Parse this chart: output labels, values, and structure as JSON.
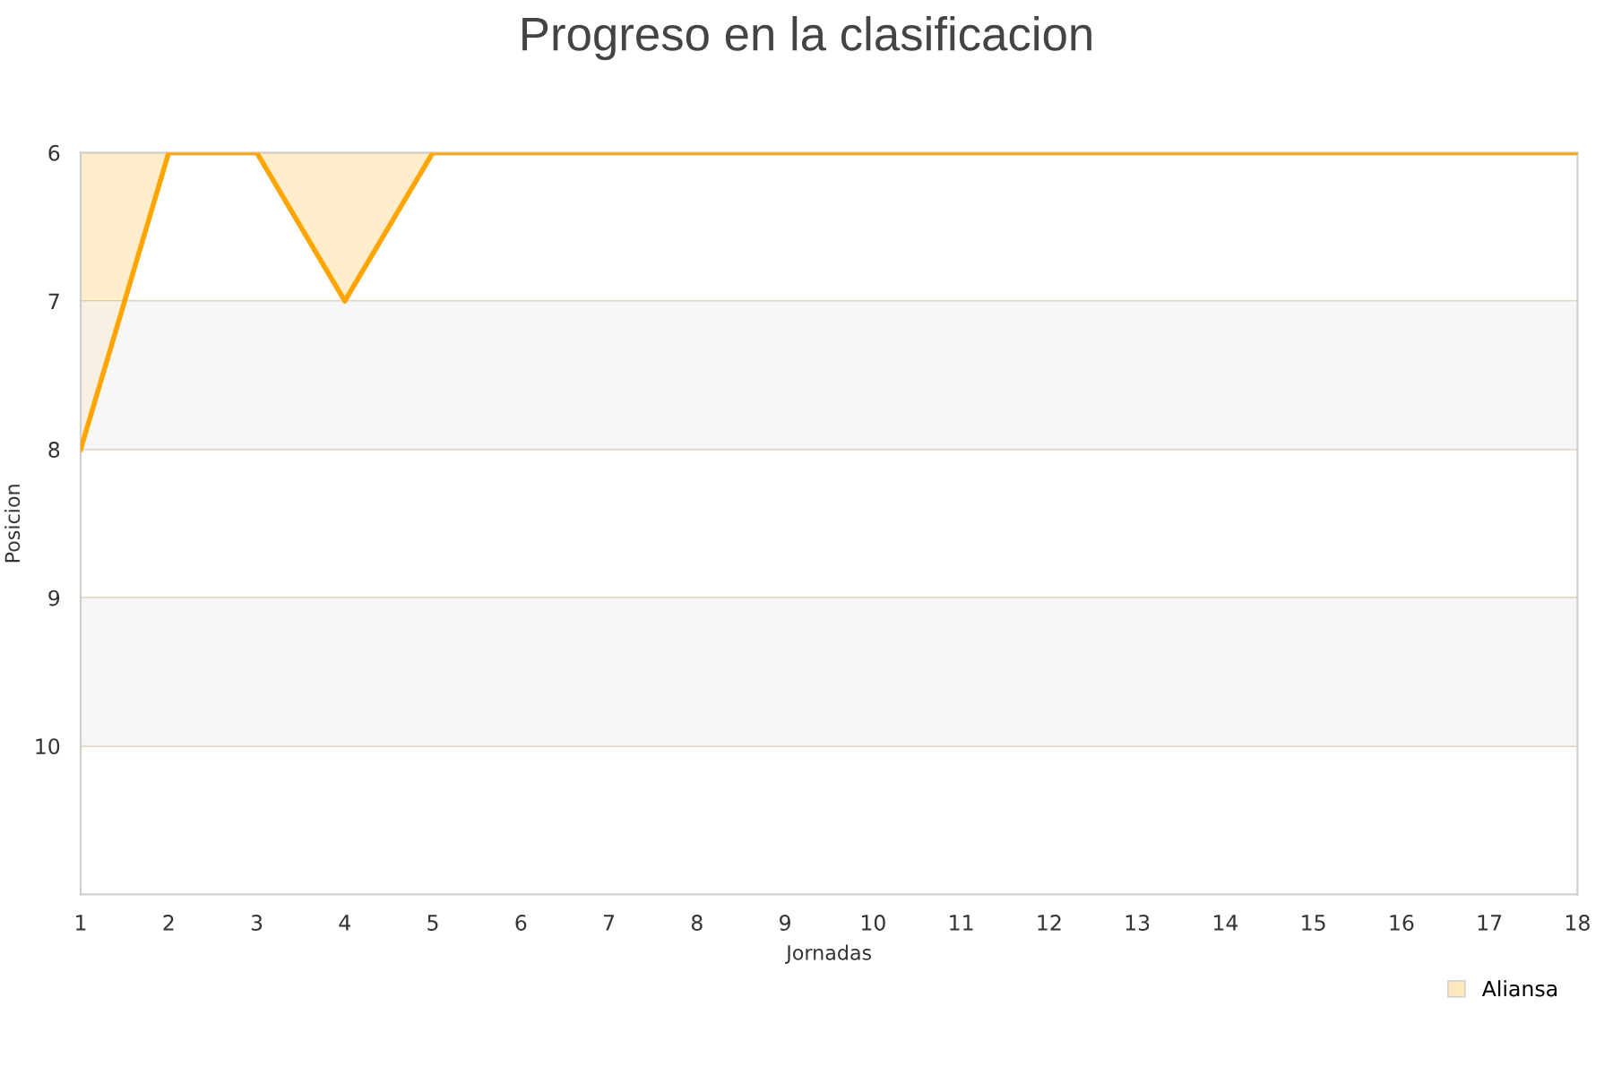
{
  "chart_data": {
    "type": "area",
    "title": "Progreso en la clasificacion",
    "xlabel": "Jornadas",
    "ylabel": "Posicion",
    "x": [
      1,
      2,
      3,
      4,
      5,
      6,
      7,
      8,
      9,
      10,
      11,
      12,
      13,
      14,
      15,
      16,
      17,
      18
    ],
    "series": [
      {
        "name": "Aliansa",
        "color": "#ffa500",
        "values": [
          8,
          6,
          6,
          7,
          6,
          6,
          6,
          6,
          6,
          6,
          6,
          6,
          6,
          6,
          6,
          6,
          6,
          6
        ]
      }
    ],
    "xlim": [
      1,
      18
    ],
    "xticks": [
      1,
      2,
      3,
      4,
      5,
      6,
      7,
      8,
      9,
      10,
      11,
      12,
      13,
      14,
      15,
      16,
      17,
      18
    ],
    "ylim": [
      11,
      6
    ],
    "yticks": [
      6,
      7,
      8,
      9,
      10
    ],
    "bands": [
      {
        "axis": "y",
        "from": 7,
        "to": 8,
        "color": "#f2f2f2"
      },
      {
        "axis": "y",
        "from": 9,
        "to": 10,
        "color": "#f2f2f2"
      }
    ],
    "grid": "y",
    "legend": "bottom right"
  }
}
